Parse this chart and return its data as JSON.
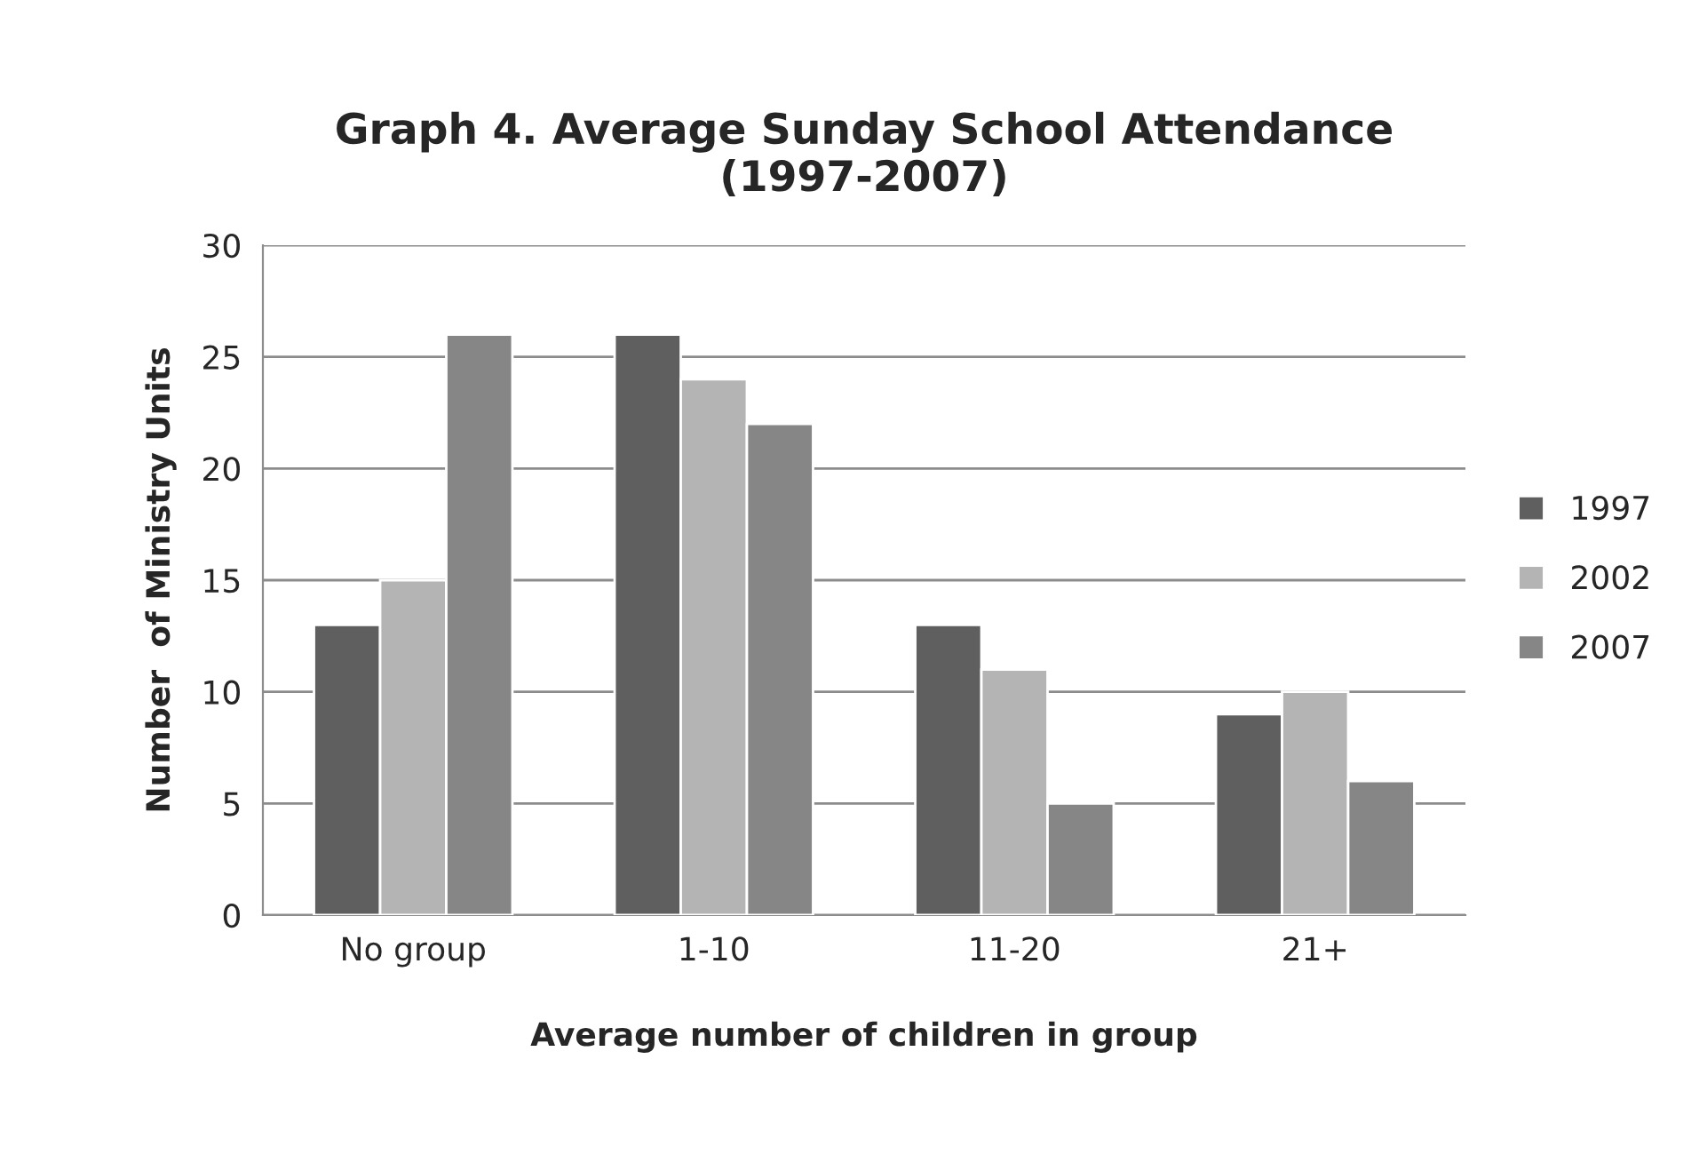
{
  "chart_data": {
    "type": "bar",
    "title": "Graph 4. Average Sunday School Attendance\n(1997-2007)",
    "xlabel": "Average number of children in group",
    "ylabel": "Number  of Ministry Units",
    "categories": [
      "No group",
      "1-10",
      "11-20",
      "21+"
    ],
    "series": [
      {
        "name": "1997",
        "color": "#5f5f5f",
        "values": [
          13,
          26,
          13,
          9
        ]
      },
      {
        "name": "2002",
        "color": "#b4b4b4",
        "values": [
          15,
          24,
          11,
          10
        ]
      },
      {
        "name": "2007",
        "color": "#868686",
        "values": [
          26,
          22,
          5,
          6
        ]
      }
    ],
    "ylim": [
      0,
      30
    ],
    "yticks": [
      0,
      5,
      10,
      15,
      20,
      25,
      30
    ],
    "grid": "y",
    "legend": "right"
  }
}
